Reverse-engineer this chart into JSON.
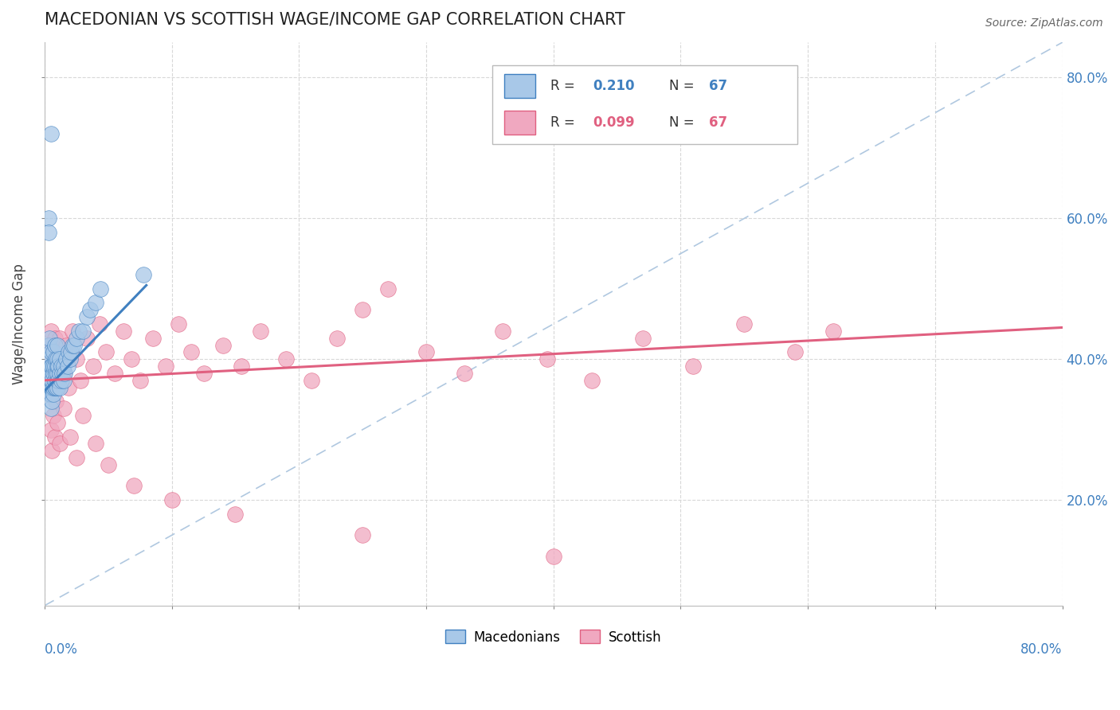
{
  "title": "MACEDONIAN VS SCOTTISH WAGE/INCOME GAP CORRELATION CHART",
  "source": "Source: ZipAtlas.com",
  "ylabel": "Wage/Income Gap",
  "right_yticks": [
    0.2,
    0.4,
    0.6,
    0.8
  ],
  "right_yticklabels": [
    "20.0%",
    "40.0%",
    "60.0%",
    "80.0%"
  ],
  "legend_macedonian": "Macedonians",
  "legend_scottish": "Scottish",
  "R_macedonian": 0.21,
  "R_scottish": 0.099,
  "N": 67,
  "color_macedonian_fill": "#a8c8e8",
  "color_scottish_fill": "#f0a8c0",
  "color_macedonian_line": "#4080c0",
  "color_scottish_line": "#e06080",
  "color_diag": "#b0c8e0",
  "macedonian_x": [
    0.002,
    0.002,
    0.003,
    0.003,
    0.003,
    0.004,
    0.004,
    0.004,
    0.004,
    0.005,
    0.005,
    0.005,
    0.005,
    0.005,
    0.005,
    0.005,
    0.006,
    0.006,
    0.006,
    0.006,
    0.007,
    0.007,
    0.007,
    0.007,
    0.007,
    0.008,
    0.008,
    0.008,
    0.008,
    0.009,
    0.009,
    0.009,
    0.01,
    0.01,
    0.01,
    0.01,
    0.01,
    0.01,
    0.011,
    0.011,
    0.012,
    0.012,
    0.012,
    0.013,
    0.013,
    0.014,
    0.015,
    0.015,
    0.016,
    0.017,
    0.018,
    0.019,
    0.02,
    0.021,
    0.022,
    0.023,
    0.025,
    0.027,
    0.03,
    0.033,
    0.036,
    0.04,
    0.044,
    0.005,
    0.003,
    0.003,
    0.078
  ],
  "macedonian_y": [
    0.38,
    0.4,
    0.36,
    0.38,
    0.42,
    0.35,
    0.37,
    0.4,
    0.43,
    0.33,
    0.35,
    0.36,
    0.37,
    0.38,
    0.39,
    0.41,
    0.34,
    0.36,
    0.37,
    0.39,
    0.35,
    0.36,
    0.38,
    0.39,
    0.41,
    0.36,
    0.37,
    0.39,
    0.42,
    0.36,
    0.38,
    0.4,
    0.36,
    0.37,
    0.38,
    0.39,
    0.4,
    0.42,
    0.37,
    0.39,
    0.36,
    0.38,
    0.4,
    0.37,
    0.39,
    0.38,
    0.37,
    0.39,
    0.38,
    0.4,
    0.39,
    0.41,
    0.4,
    0.41,
    0.42,
    0.42,
    0.43,
    0.44,
    0.44,
    0.46,
    0.47,
    0.48,
    0.5,
    0.72,
    0.6,
    0.58,
    0.52
  ],
  "scottish_x": [
    0.003,
    0.004,
    0.005,
    0.005,
    0.006,
    0.007,
    0.008,
    0.009,
    0.01,
    0.011,
    0.012,
    0.013,
    0.015,
    0.017,
    0.019,
    0.022,
    0.025,
    0.028,
    0.033,
    0.038,
    0.043,
    0.048,
    0.055,
    0.062,
    0.068,
    0.075,
    0.085,
    0.095,
    0.105,
    0.115,
    0.125,
    0.14,
    0.155,
    0.17,
    0.19,
    0.21,
    0.23,
    0.25,
    0.27,
    0.3,
    0.33,
    0.36,
    0.395,
    0.43,
    0.47,
    0.51,
    0.55,
    0.59,
    0.62,
    0.005,
    0.006,
    0.007,
    0.008,
    0.009,
    0.01,
    0.012,
    0.015,
    0.02,
    0.025,
    0.03,
    0.04,
    0.05,
    0.07,
    0.1,
    0.15,
    0.25,
    0.4
  ],
  "scottish_y": [
    0.42,
    0.38,
    0.44,
    0.35,
    0.4,
    0.36,
    0.43,
    0.38,
    0.41,
    0.37,
    0.43,
    0.39,
    0.38,
    0.42,
    0.36,
    0.44,
    0.4,
    0.37,
    0.43,
    0.39,
    0.45,
    0.41,
    0.38,
    0.44,
    0.4,
    0.37,
    0.43,
    0.39,
    0.45,
    0.41,
    0.38,
    0.42,
    0.39,
    0.44,
    0.4,
    0.37,
    0.43,
    0.47,
    0.5,
    0.41,
    0.38,
    0.44,
    0.4,
    0.37,
    0.43,
    0.39,
    0.45,
    0.41,
    0.44,
    0.3,
    0.27,
    0.32,
    0.29,
    0.34,
    0.31,
    0.28,
    0.33,
    0.29,
    0.26,
    0.32,
    0.28,
    0.25,
    0.22,
    0.2,
    0.18,
    0.15,
    0.12
  ],
  "xlim": [
    0,
    0.8
  ],
  "ylim": [
    0.05,
    0.85
  ],
  "mac_trend_x": [
    0.0,
    0.08
  ],
  "mac_trend_y": [
    0.355,
    0.505
  ],
  "scot_trend_x": [
    0.0,
    0.8
  ],
  "scot_trend_y": [
    0.37,
    0.445
  ]
}
